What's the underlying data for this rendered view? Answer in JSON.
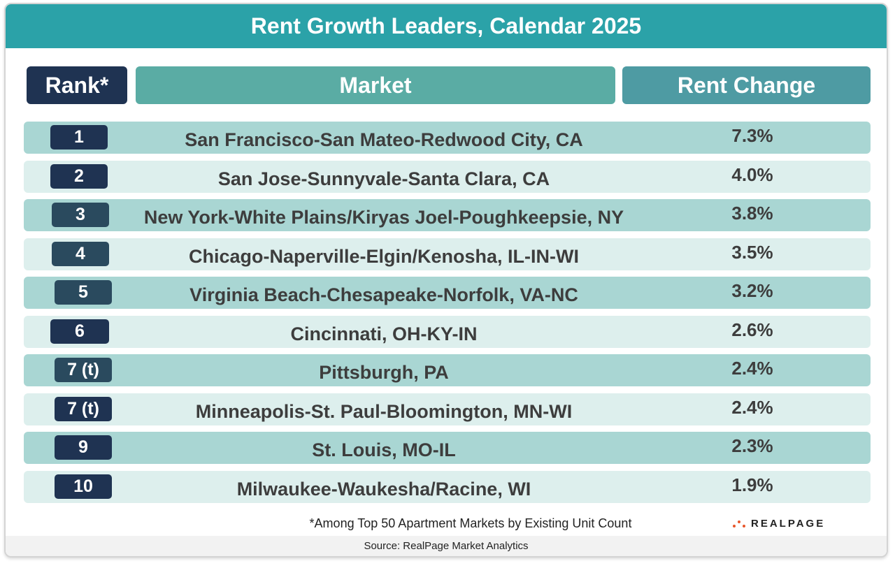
{
  "colors": {
    "title_bar": "#2ba2a8",
    "rank_header": "#1f3352",
    "market_header": "#5aaca4",
    "change_header": "#4e9ba3",
    "row_dark": "#a9d6d3",
    "row_light": "#ddefed",
    "logo_accent": "#e8562a"
  },
  "chart_data": {
    "type": "table",
    "title": "Rent Growth Leaders, Calendar 2025",
    "columns": [
      "Rank*",
      "Market",
      "Rent Change"
    ],
    "rows": [
      {
        "rank": "1",
        "market": "San Francisco-San Mateo-Redwood City, CA",
        "change": "7.3%"
      },
      {
        "rank": "2",
        "market": "San Jose-Sunnyvale-Santa Clara, CA",
        "change": "4.0%"
      },
      {
        "rank": "3",
        "market": "New York-White Plains/Kiryas Joel-Poughkeepsie, NY",
        "change": "3.8%"
      },
      {
        "rank": "4",
        "market": "Chicago-Naperville-Elgin/Kenosha, IL-IN-WI",
        "change": "3.5%"
      },
      {
        "rank": "5",
        "market": "Virginia Beach-Chesapeake-Norfolk, VA-NC",
        "change": "3.2%"
      },
      {
        "rank": "6",
        "market": "Cincinnati, OH-KY-IN",
        "change": "2.6%"
      },
      {
        "rank": "7 (t)",
        "market": "Pittsburgh, PA",
        "change": "2.4%"
      },
      {
        "rank": "7 (t)",
        "market": "Minneapolis-St. Paul-Bloomington, MN-WI",
        "change": "2.4%"
      },
      {
        "rank": "9",
        "market": "St. Louis, MO-IL",
        "change": "2.3%"
      },
      {
        "rank": "10",
        "market": "Milwaukee-Waukesha/Racine, WI",
        "change": "1.9%"
      }
    ],
    "footnote": "*Among Top 50 Apartment Markets by Existing Unit Count",
    "source": "Source: RealPage Market Analytics"
  },
  "logo": {
    "text": "REALPAGE"
  }
}
